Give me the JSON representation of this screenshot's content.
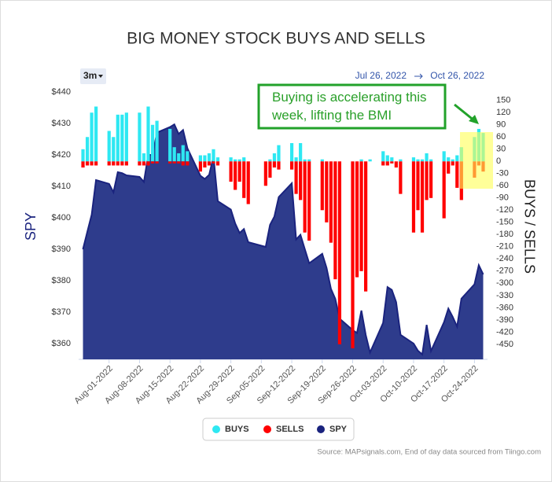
{
  "chart_data": {
    "type": "bar",
    "title": "BIG MONEY STOCK BUYS AND SELLS",
    "y_label": "SPY",
    "y2_label": "BUYS / SELLS",
    "range_selector": {
      "button": "3m",
      "from": "Jul 26, 2022",
      "to": "Oct 26, 2022"
    },
    "annotation": "Buying is accelerating this week, lifting the BMI",
    "source": "Source: MAPsignals.com, End of day data sourced from Tiingo.com",
    "x": [
      "Jul-26-2022",
      "Jul-27-2022",
      "Jul-28-2022",
      "Jul-29-2022",
      "Aug-01-2022",
      "Aug-02-2022",
      "Aug-03-2022",
      "Aug-04-2022",
      "Aug-05-2022",
      "Aug-08-2022",
      "Aug-09-2022",
      "Aug-10-2022",
      "Aug-11-2022",
      "Aug-12-2022",
      "Aug-15-2022",
      "Aug-16-2022",
      "Aug-17-2022",
      "Aug-18-2022",
      "Aug-19-2022",
      "Aug-22-2022",
      "Aug-23-2022",
      "Aug-24-2022",
      "Aug-25-2022",
      "Aug-26-2022",
      "Aug-29-2022",
      "Aug-30-2022",
      "Aug-31-2022",
      "Sep-01-2022",
      "Sep-02-2022",
      "Sep-06-2022",
      "Sep-07-2022",
      "Sep-08-2022",
      "Sep-09-2022",
      "Sep-12-2022",
      "Sep-13-2022",
      "Sep-14-2022",
      "Sep-15-2022",
      "Sep-16-2022",
      "Sep-19-2022",
      "Sep-20-2022",
      "Sep-21-2022",
      "Sep-22-2022",
      "Sep-23-2022",
      "Sep-26-2022",
      "Sep-27-2022",
      "Sep-28-2022",
      "Sep-29-2022",
      "Sep-30-2022",
      "Oct-03-2022",
      "Oct-04-2022",
      "Oct-05-2022",
      "Oct-06-2022",
      "Oct-07-2022",
      "Oct-10-2022",
      "Oct-11-2022",
      "Oct-12-2022",
      "Oct-13-2022",
      "Oct-14-2022",
      "Oct-17-2022",
      "Oct-18-2022",
      "Oct-19-2022",
      "Oct-20-2022",
      "Oct-21-2022",
      "Oct-24-2022",
      "Oct-25-2022",
      "Oct-26-2022"
    ],
    "xlim": [
      "Jul-25-2022",
      "Oct-27-2022"
    ],
    "xticks": [
      "Aug-01-2022",
      "Aug-08-2022",
      "Aug-15-2022",
      "Aug-22-2022",
      "Aug-29-2022",
      "Sep-05-2022",
      "Sep-12-2022",
      "Sep-19-2022",
      "Sep-26-2022",
      "Oct-03-2022",
      "Oct-10-2022",
      "Oct-17-2022",
      "Oct-24-2022"
    ],
    "ylim": [
      355,
      443
    ],
    "yticks": [
      {
        "value": 360,
        "label": "$360"
      },
      {
        "value": 370,
        "label": "$370"
      },
      {
        "value": 380,
        "label": "$380"
      },
      {
        "value": 390,
        "label": "$390"
      },
      {
        "value": 400,
        "label": "$400"
      },
      {
        "value": 410,
        "label": "$410"
      },
      {
        "value": 420,
        "label": "$420"
      },
      {
        "value": 430,
        "label": "$430"
      },
      {
        "value": 440,
        "label": "$440"
      }
    ],
    "y2lim": [
      -487,
      194
    ],
    "y2ticks": [
      150,
      120,
      90,
      60,
      30,
      0,
      -30,
      -60,
      -90,
      -120,
      -150,
      -180,
      -210,
      -240,
      -270,
      -300,
      -330,
      -360,
      -390,
      -420,
      -450
    ],
    "legend": "bottom",
    "series": [
      {
        "name": "BUYS",
        "type": "bar",
        "axis": "y2",
        "color": "#2ee8f2",
        "values": [
          30,
          60,
          120,
          135,
          75,
          60,
          115,
          115,
          120,
          120,
          20,
          135,
          90,
          100,
          80,
          35,
          20,
          40,
          25,
          15,
          15,
          20,
          30,
          10,
          10,
          5,
          5,
          10,
          0,
          0,
          5,
          20,
          40,
          45,
          10,
          45,
          5,
          5,
          5,
          0,
          0,
          0,
          0,
          0,
          0,
          5,
          0,
          5,
          25,
          15,
          10,
          0,
          5,
          10,
          5,
          5,
          20,
          5,
          25,
          10,
          5,
          15,
          35,
          60,
          80,
          70
        ]
      },
      {
        "name": "SELLS",
        "type": "bar",
        "axis": "y2",
        "color": "#ff0000",
        "values": [
          -15,
          -10,
          -10,
          -10,
          -10,
          -10,
          -10,
          -10,
          -10,
          -10,
          -10,
          -10,
          -5,
          -5,
          -5,
          -5,
          -5,
          -10,
          -10,
          -25,
          -15,
          -10,
          -5,
          -10,
          -50,
          -70,
          -50,
          -90,
          -105,
          -60,
          -40,
          -15,
          -20,
          -20,
          -80,
          -95,
          -175,
          -195,
          -120,
          -150,
          -200,
          -290,
          -450,
          -460,
          -285,
          -270,
          -320,
          0,
          -10,
          -10,
          -5,
          -15,
          -80,
          -175,
          -120,
          -175,
          -95,
          -90,
          -140,
          -30,
          -10,
          -65,
          -95,
          -40,
          -10,
          -25
        ]
      },
      {
        "name": "SPY",
        "type": "area",
        "axis": "y",
        "color": "#2e3c8c",
        "values": [
          390.0,
          395.6,
          401.0,
          411.99,
          410.8,
          408.1,
          414.5,
          414.2,
          413.5,
          413.0,
          411.4,
          419.99,
          419.99,
          427.1,
          428.86,
          429.7,
          426.65,
          427.89,
          422.14,
          413.35,
          412.35,
          413.67,
          419.51,
          405.31,
          402.63,
          398.21,
          395.18,
          396.42,
          392.24,
          390.76,
          397.78,
          400.38,
          406.6,
          410.97,
          393.1,
          394.6,
          389.98,
          385.56,
          388.55,
          384.09,
          377.39,
          374.22,
          367.95,
          364.31,
          363.38,
          370.53,
          362.79,
          357.18,
          366.61,
          377.97,
          377.09,
          373.2,
          362.79,
          360.02,
          357.74,
          356.56,
          365.97,
          357.63,
          366.82,
          371.13,
          368.5,
          365.41,
          374.29,
          378.87,
          384.92,
          382.02
        ]
      }
    ]
  }
}
